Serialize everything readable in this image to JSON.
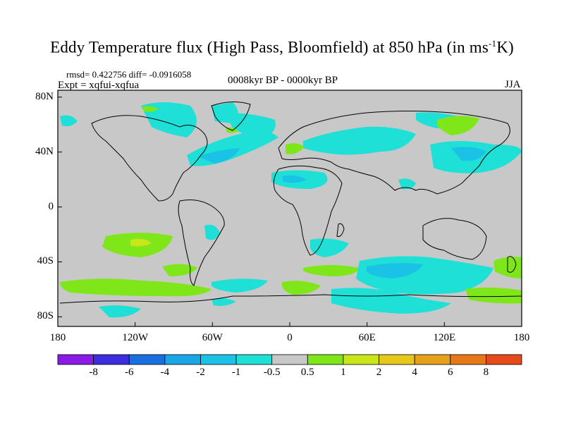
{
  "title": {
    "main": "Eddy Temperature flux (High Pass, Bloomfield) at 850 hPa (in ms",
    "sup": "-1",
    "end": "K)"
  },
  "stats": "rmsd= 0.422756 diff= -0.0916058",
  "experiment": "Expt = xqfui-xqfua",
  "period": "0008kyr BP - 0000kyr BP",
  "season": "JJA",
  "axes": {
    "lat_labels": [
      "80N",
      "40N",
      "0",
      "40S",
      "80S"
    ],
    "lat_values": [
      80,
      40,
      0,
      -40,
      -80
    ],
    "lon_labels": [
      "180",
      "120W",
      "60W",
      "0",
      "60E",
      "120E",
      "180"
    ],
    "lon_values": [
      -180,
      -120,
      -60,
      0,
      60,
      120,
      180
    ]
  },
  "colorbar": {
    "labels": [
      "-8",
      "-6",
      "-4",
      "-2",
      "-1",
      "-0.5",
      "0.5",
      "1",
      "2",
      "4",
      "6",
      "8"
    ],
    "colors": [
      "#8b1ae6",
      "#3c2ee0",
      "#1a6fe0",
      "#1aa6e6",
      "#1ac3e6",
      "#1fe0d6",
      "#c8c8c8",
      "#7fe61a",
      "#c8e61a",
      "#e6c81a",
      "#e6a01a",
      "#e6781a",
      "#e64a1a"
    ]
  },
  "colors": {
    "land_background": "#c8c8c8",
    "coast": "#000000"
  }
}
